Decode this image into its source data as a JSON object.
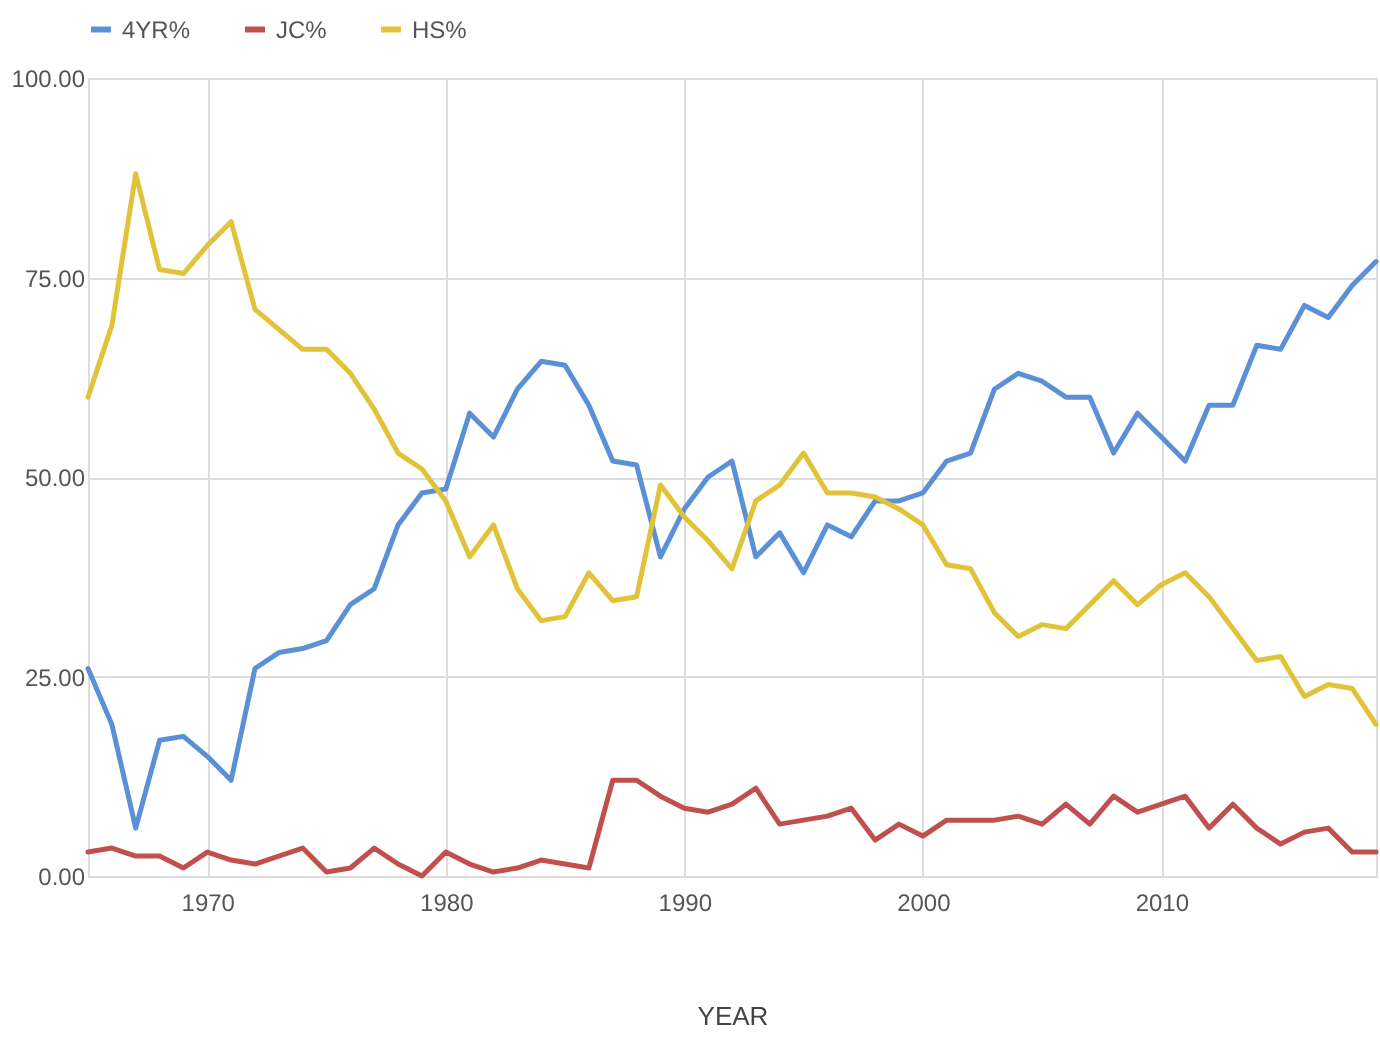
{
  "chart_data": {
    "type": "line",
    "xlabel": "YEAR",
    "legend": "top",
    "grid": true,
    "line_style": "solid",
    "x": [
      1965,
      1966,
      1967,
      1968,
      1969,
      1970,
      1971,
      1972,
      1973,
      1974,
      1975,
      1976,
      1977,
      1978,
      1979,
      1980,
      1981,
      1982,
      1983,
      1984,
      1985,
      1986,
      1987,
      1988,
      1989,
      1990,
      1991,
      1992,
      1993,
      1994,
      1995,
      1996,
      1997,
      1998,
      1999,
      2000,
      2001,
      2002,
      2003,
      2004,
      2005,
      2006,
      2007,
      2008,
      2009,
      2010,
      2011,
      2012,
      2013,
      2014,
      2015,
      2016,
      2017,
      2018,
      2019
    ],
    "xlim": [
      1965,
      2019
    ],
    "xticks": [
      1970,
      1980,
      1990,
      2000,
      2010
    ],
    "ylim": [
      0,
      100
    ],
    "yticks": [
      {
        "value": 0,
        "label": "0.00"
      },
      {
        "value": 25,
        "label": "25.00"
      },
      {
        "value": 50,
        "label": "50.00"
      },
      {
        "value": 75,
        "label": "75.00"
      },
      {
        "value": 100,
        "label": "100.00"
      }
    ],
    "series": [
      {
        "name": "4YR%",
        "color": "#5b8fd6",
        "values": [
          26,
          19,
          6,
          17,
          17.5,
          15,
          12,
          26,
          28,
          28.5,
          29.5,
          34,
          36,
          44,
          48,
          48.5,
          58,
          55,
          61,
          64.5,
          64,
          59,
          52,
          51.5,
          40,
          46,
          50,
          52,
          40,
          43,
          38,
          44,
          42.5,
          47,
          47,
          48,
          52,
          53,
          61,
          63,
          62,
          60,
          60,
          53,
          58,
          55,
          52,
          59,
          59,
          66.5,
          66,
          71.5,
          70,
          74,
          77
        ]
      },
      {
        "name": "JC%",
        "color": "#c0504d",
        "values": [
          3,
          3.5,
          2.5,
          2.5,
          1,
          3,
          2,
          1.5,
          2.5,
          3.5,
          0.5,
          1,
          3.5,
          1.5,
          0,
          3,
          1.5,
          0.5,
          1,
          2,
          1.5,
          1,
          12,
          12,
          10,
          8.5,
          8,
          9,
          11,
          6.5,
          7,
          7.5,
          8.5,
          4.5,
          6.5,
          5,
          7,
          7,
          7,
          7.5,
          6.5,
          9,
          6.5,
          10,
          8,
          9,
          10,
          6,
          9,
          6,
          4,
          5.5,
          6,
          3,
          3
        ]
      },
      {
        "name": "HS%",
        "color": "#e1c33a",
        "values": [
          60,
          69,
          88,
          76,
          75.5,
          79,
          82,
          71,
          68.5,
          66,
          66,
          63,
          58.5,
          53,
          51,
          47,
          40,
          44,
          36,
          32,
          32.5,
          38,
          34.5,
          35,
          49,
          45,
          42,
          38.5,
          47,
          49,
          53,
          48,
          48,
          47.5,
          46,
          44,
          39,
          38.5,
          33,
          30,
          31.5,
          31,
          34,
          37,
          34,
          36.5,
          38,
          35,
          31,
          27,
          27.5,
          22.5,
          24,
          23.5,
          19
        ]
      }
    ]
  }
}
